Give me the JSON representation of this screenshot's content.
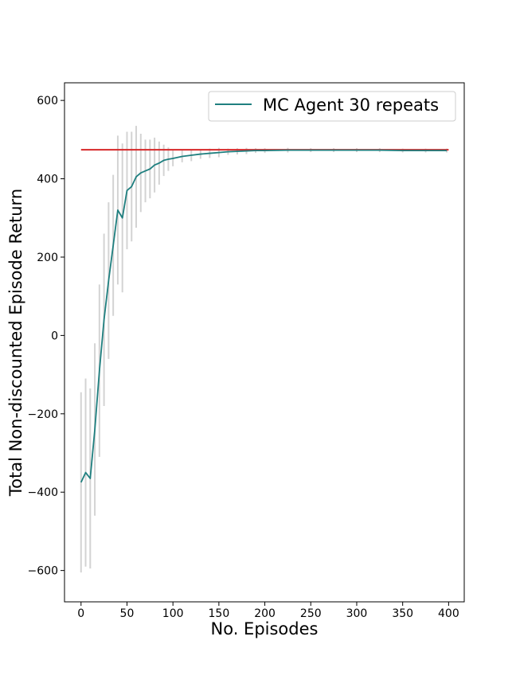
{
  "chart_data": {
    "type": "line",
    "title": "",
    "xlabel": "No. Episodes",
    "ylabel": "Total Non-discounted Episode Return",
    "xlim": [
      -18,
      417
    ],
    "ylim": [
      -680,
      645
    ],
    "xticks": [
      0,
      50,
      100,
      150,
      200,
      250,
      300,
      350,
      400
    ],
    "yticks": [
      -600,
      -400,
      -200,
      0,
      200,
      400,
      600
    ],
    "legend": {
      "location": "top-right",
      "entries": [
        "MC Agent 30 repeats"
      ]
    },
    "grid": false,
    "colors": {
      "series": "#1f7f7f",
      "reference": "#d62728",
      "error_bars": "#d3d3d3",
      "axes": "#000000"
    },
    "series": [
      {
        "name": "MC Agent 30 repeats",
        "x": [
          0,
          5,
          10,
          15,
          20,
          25,
          30,
          35,
          40,
          45,
          50,
          55,
          60,
          65,
          70,
          75,
          80,
          85,
          90,
          95,
          100,
          110,
          120,
          130,
          140,
          150,
          160,
          170,
          180,
          190,
          200,
          225,
          250,
          275,
          300,
          325,
          350,
          375,
          398
        ],
        "y": [
          -375,
          -350,
          -365,
          -240,
          -90,
          40,
          140,
          230,
          320,
          300,
          370,
          380,
          405,
          415,
          420,
          425,
          435,
          440,
          447,
          450,
          452,
          457,
          460,
          463,
          465,
          467,
          469,
          470,
          471,
          472,
          472,
          473,
          473,
          473,
          473,
          473,
          472,
          472,
          472
        ],
        "err": [
          230,
          240,
          230,
          220,
          220,
          220,
          200,
          180,
          190,
          190,
          150,
          140,
          130,
          100,
          80,
          75,
          70,
          55,
          40,
          30,
          20,
          15,
          15,
          12,
          12,
          12,
          8,
          8,
          8,
          6,
          6,
          6,
          5,
          5,
          5,
          5,
          5,
          5,
          5
        ]
      }
    ],
    "reference_line": {
      "y": 474,
      "x_range": [
        0,
        400
      ]
    }
  }
}
